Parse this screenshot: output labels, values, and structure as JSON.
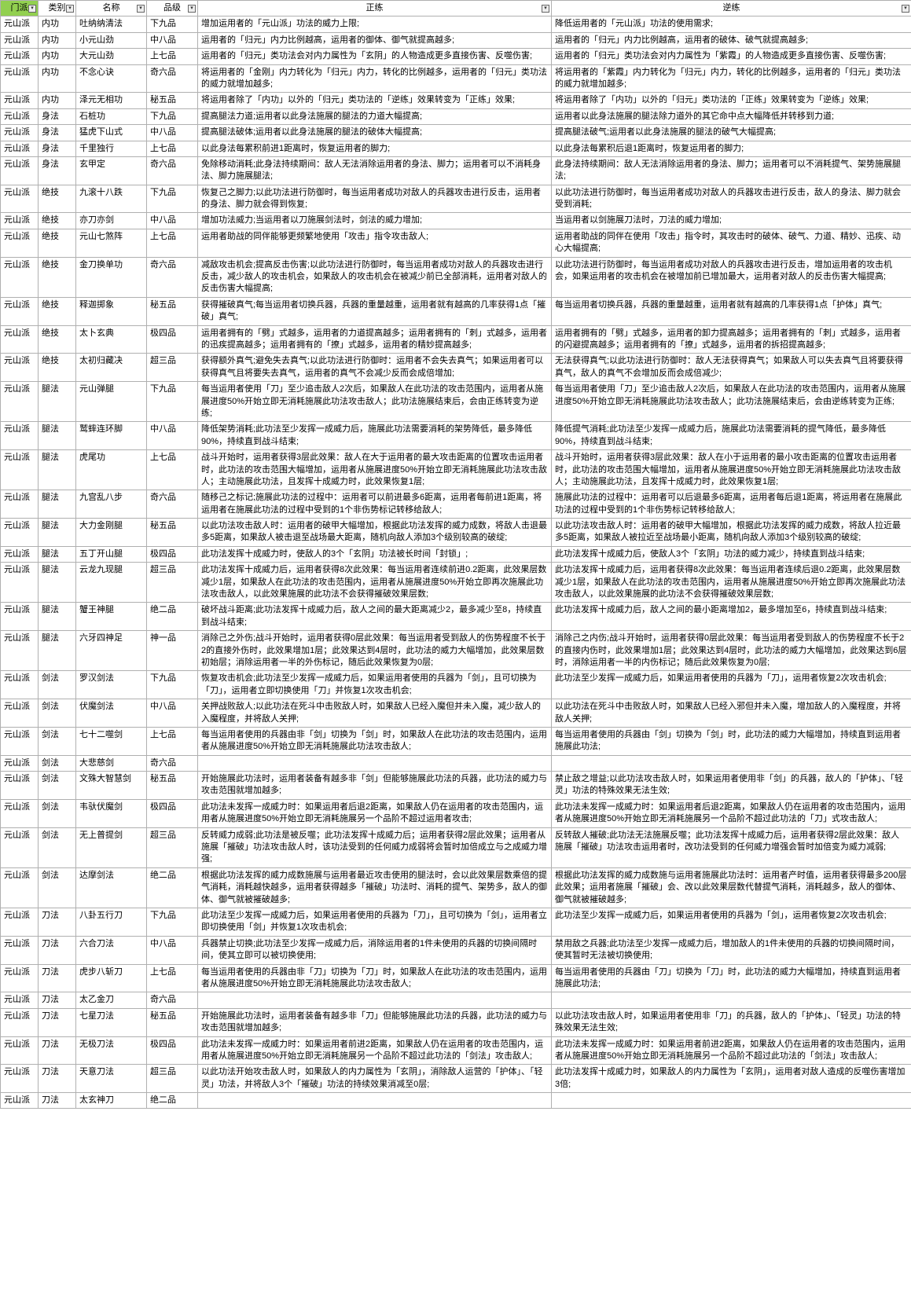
{
  "headers": [
    "门派",
    "类别",
    "名称",
    "品级",
    "正练",
    "逆练"
  ],
  "rows": [
    [
      "元山派",
      "内功",
      "吐纳纳清法",
      "下九品",
      "增加运用者的「元山派」功法的威力上限;",
      "降低运用者的「元山派」功法的使用需求;"
    ],
    [
      "元山派",
      "内功",
      "小元山劲",
      "中八品",
      "运用者的「归元」内力比例越高，运用者的御体、御气就提高越多;",
      "运用者的「归元」内力比例越高，运用者的破体、破气就提高越多;"
    ],
    [
      "元山派",
      "内功",
      "大元山劲",
      "上七品",
      "运用者的「归元」类功法会对内力属性为「玄阴」的人物造成更多直接伤害、反噬伤害;",
      "运用者的「归元」类功法会对内力属性为「紫霞」的人物造成更多直接伤害、反噬伤害;"
    ],
    [
      "元山派",
      "内功",
      "不念心诀",
      "奇六品",
      "将运用者的「金刚」内力转化为「归元」内力，转化的比例越多，运用者的「归元」类功法的威力就增加越多;",
      "将运用者的「紫霞」内力转化为「归元」内力，转化的比例越多，运用者的「归元」类功法的威力就增加越多;"
    ],
    [
      "元山派",
      "内功",
      "泽元无相功",
      "秘五品",
      "将运用者除了「内功」以外的「归元」类功法的「逆练」效果转变为「正练」效果;",
      "将运用者除了「内功」以外的「归元」类功法的「正练」效果转变为「逆练」效果;"
    ],
    [
      "元山派",
      "身法",
      "石桩功",
      "下九品",
      "提高腿法力道;运用者以此身法施展的腿法的力道大幅提高;",
      "运用者以此身法施展的腿法除力道外的其它命中点大幅降低并转移到力道;"
    ],
    [
      "元山派",
      "身法",
      "猛虎下山式",
      "中八品",
      "提高腿法破体;运用者以此身法施展的腿法的破体大幅提高;",
      "提高腿法破气;运用者以此身法施展的腿法的破气大幅提高;"
    ],
    [
      "元山派",
      "身法",
      "千里独行",
      "上七品",
      "以此身法每累积前进1距离时，恢复运用者的脚力;",
      "以此身法每累积后退1距离时，恢复运用者的脚力;"
    ],
    [
      "元山派",
      "身法",
      "玄甲定",
      "奇六品",
      "免除移动消耗;此身法持续期间：敌人无法消除运用者的身法、脚力；运用者可以不消耗身法、脚力施展腿法;",
      "此身法持续期间：敌人无法消除运用者的身法、脚力；运用者可以不消耗提气、架势施展腿法;"
    ],
    [
      "元山派",
      "绝技",
      "九滚十八跌",
      "下九品",
      "恢复己之脚力;以此功法进行防御时，每当运用者成功对敌人的兵器攻击进行反击，运用者的身法、脚力就会得到恢复;",
      "以此功法进行防御时，每当运用者成功对敌人的兵器攻击进行反击，敌人的身法、脚力就会受到消耗;"
    ],
    [
      "元山派",
      "绝技",
      "亦刀亦剑",
      "中八品",
      "增加功法威力;当运用者以刀施展剑法时，剑法的威力增加;",
      "当运用者以剑施展刀法时，刀法的威力增加;"
    ],
    [
      "元山派",
      "绝技",
      "元山七煞阵",
      "上七品",
      "运用者助战的同伴能够更频繁地使用「攻击」指令攻击敌人;",
      "运用者助战的同伴在使用「攻击」指令时，其攻击时的破体、破气、力道、精妙、迅疾、动心大幅提高;"
    ],
    [
      "元山派",
      "绝技",
      "金刀换单功",
      "奇六品",
      "减敌攻击机会;提高反击伤害;以此功法进行防御时，每当运用者成功对敌人的兵器攻击进行反击，减少敌人的攻击机会，如果敌人的攻击机会在被减少前已全部消耗，运用者对敌人的反击伤害大幅提高;",
      "以此功法进行防御时，每当运用者成功对敌人的兵器攻击进行反击，增加运用者的攻击机会，如果运用者的攻击机会在被增加前已增加最大，运用者对敌人的反击伤害大幅提高;"
    ],
    [
      "元山派",
      "绝技",
      "释迦掷象",
      "秘五品",
      "获得摧破真气;每当运用者切换兵器，兵器的重量越重，运用者就有越高的几率获得1点「摧破」真气;",
      "每当运用者切换兵器，兵器的重量越重，运用者就有越高的几率获得1点「护体」真气;"
    ],
    [
      "元山派",
      "绝技",
      "太卜玄典",
      "极四品",
      "运用者拥有的「劈」式越多，运用者的力道提高越多；运用者拥有的「刺」式越多，运用者的迅疾提高越多；运用者拥有的「撩」式越多，运用者的精妙提高越多;",
      "运用者拥有的「劈」式越多，运用者的卸力提高越多；运用者拥有的「刺」式越多，运用者的闪避提高越多；运用者拥有的「撩」式越多，运用者的拆招提高越多;"
    ],
    [
      "元山派",
      "绝技",
      "太初归藏决",
      "超三品",
      "获得额外真气;避免失去真气;以此功法进行防御时：运用者不会失去真气；如果运用者可以获得真气且将要失去真气，运用者的真气不会减少反而会成倍增加;",
      "无法获得真气;以此功法进行防御时：敌人无法获得真气；如果敌人可以失去真气且将要获得真气，敌人的真气不会增加反而会成倍减少;"
    ],
    [
      "元山派",
      "腿法",
      "元山弹腿",
      "下九品",
      "每当运用者使用「刀」至少追击敌人2次后，如果敌人在此功法的攻击范围内，运用者从施展进度50%开始立即无消耗施展此功法攻击敌人；此功法施展结束后，会由正练转变为逆练;",
      "每当运用者使用「刀」至少追击敌人2次后，如果敌人在此功法的攻击范围内，运用者从施展进度50%开始立即无消耗施展此功法攻击敌人；此功法施展结束后，会由逆练转变为正练;"
    ],
    [
      "元山派",
      "腿法",
      "鹫蟀连环脚",
      "中八品",
      "降低架势消耗;此功法至少发挥一成威力后，施展此功法需要消耗的架势降低，最多降低90%，持续直到战斗结束;",
      "降低提气消耗;此功法至少发挥一成威力后，施展此功法需要消耗的提气降低，最多降低90%，持续直到战斗结束;"
    ],
    [
      "元山派",
      "腿法",
      "虎尾功",
      "上七品",
      "战斗开始时，运用者获得3层此效果：敌人在大于运用者的最大攻击距离的位置攻击运用者时，此功法的攻击范围大幅增加，运用者从施展进度50%开始立即无消耗施展此功法攻击敌人；主动施展此功法，且发挥十成威力时，此效果恢复1层;",
      "战斗开始时，运用者获得3层此效果：敌人在小于运用者的最小攻击距离的位置攻击运用者时，此功法的攻击范围大幅增加，运用者从施展进度50%开始立即无消耗施展此功法攻击敌人；主动施展此功法，且发挥十成威力时，此效果恢复1层;"
    ],
    [
      "元山派",
      "腿法",
      "九宫乱八步",
      "奇六品",
      "随移己之标记;施展此功法的过程中：运用者可以前进最多6距离，运用者每前进1距离，将运用者在施展此功法的过程中受到的1个非伤势标记转移给敌人;",
      "施展此功法的过程中：运用者可以后退最多6距离，运用者每后退1距离，将运用者在施展此功法的过程中受到的1个非伤势标记转移给敌人;"
    ],
    [
      "元山派",
      "腿法",
      "大力金刚腿",
      "秘五品",
      "以此功法攻击敌人时：运用者的破甲大幅增加，根据此功法发挥的威力成数，将敌人击退最多5距离，如果敌人被击退至战场最大距离，随机向敌人添加3个级别较高的破绽;",
      "以此功法攻击敌人时：运用者的破甲大幅增加，根据此功法发挥的威力成数，将敌人拉近最多5距离，如果敌人被拉近至战场最小距离，随机向敌人添加3个级别较高的破绽;"
    ],
    [
      "元山派",
      "腿法",
      "五丁开山腿",
      "极四品",
      "此功法发挥十成威力时，使敌人的3个「玄阴」功法被长时间「封锁」;",
      "此功法发挥十成威力后，使敌人3个「玄阴」功法的威力减少，持续直到战斗结束;"
    ],
    [
      "元山派",
      "腿法",
      "云龙九现腿",
      "超三品",
      "此功法发挥十成威力后，运用者获得8次此效果：每当运用者连续前进0.2距离，此效果层数减少1层，如果敌人在此功法的攻击范围内，运用者从施展进度50%开始立即再次施展此功法攻击敌人，以此效果施展的此功法不会获得摧破效果层数;",
      "此功法发挥十成威力后，运用者获得8次此效果：每当运用者连续后退0.2距离，此效果层数减少1层，如果敌人在此功法的攻击范围内，运用者从施展进度50%开始立即再次施展此功法攻击敌人，以此效果施展的此功法不会获得摧破效果层数;"
    ],
    [
      "元山派",
      "腿法",
      "蟹王神腿",
      "绝二品",
      "破坏战斗距离;此功法发挥十成威力后，敌人之间的最大距离减少2，最多减少至8，持续直到战斗结束;",
      "此功法发挥十成威力后，敌人之间的最小距离增加2，最多增加至6，持续直到战斗结束;"
    ],
    [
      "元山派",
      "腿法",
      "六牙四神足",
      "神一品",
      "消除己之外伤;战斗开始时，运用者获得0层此效果：每当运用者受到敌人的伤势程度不长于2的直接外伤时，此效果增加1层；此效果达到4层时，此功法的威力大幅增加，此效果层数初始层；消除运用者一半的外伤标记，随后此效果恢复为0层;",
      "消除己之内伤;战斗开始时，运用者获得0层此效果：每当运用者受到敌人的伤势程度不长于2的直接内伤时，此效果增加1层；此效果达到4层时，此功法的威力大幅增加，此效果达到6层时，消除运用者一半的内伤标记；随后此效果恢复为0层;"
    ],
    [
      "元山派",
      "剑法",
      "罗汉剑法",
      "下九品",
      "恢复攻击机会;此功法至少发挥一成威力后，如果运用者使用的兵器为「剑」，且可切换为「刀」，运用者立即切换使用「刀」并恢复1次攻击机会;",
      "此功法至少发挥一成威力后，如果运用者使用的兵器为「刀」，运用者恢复2次攻击机会;"
    ],
    [
      "元山派",
      "剑法",
      "伏魔剑法",
      "中八品",
      "关押战败敌人;以此功法在死斗中击败敌人时，如果敌人已经入魔但并未入魔，减少敌人的入魔程度，并将敌人关押;",
      "以此功法在死斗中击败敌人时，如果敌人已经入邪但并未入魔，增加敌人的入魔程度，并将敌人关押;"
    ],
    [
      "元山派",
      "剑法",
      "七十二噬剑",
      "上七品",
      "每当运用者使用的兵器由非「剑」切换为「剑」时，如果敌人在此功法的攻击范围内，运用者从施展进度50%开始立即无消耗施展此功法攻击敌人;",
      "每当运用者使用的兵器由「剑」切换为「剑」时，此功法的威力大幅增加，持续直到运用者施展此功法;"
    ],
    [
      "元山派",
      "剑法",
      "大悲慈剑",
      "奇六品",
      "",
      ""
    ],
    [
      "元山派",
      "剑法",
      "文殊大智慧剑",
      "秘五品",
      "开始施展此功法时，运用者装备有越多非「剑」但能够施展此功法的兵器，此功法的威力与攻击范围就增加越多;",
      "禁止敌之增益;以此功法攻击敌人时，如果运用者使用非「剑」的兵器，敌人的「护体」、「轻灵」功法的特殊效果无法生效;"
    ],
    [
      "元山派",
      "剑法",
      "韦驮伏魔剑",
      "极四品",
      "此功法未发挥一成威力时：如果运用者后退2距离，如果敌人仍在运用者的攻击范围内，运用者从施展进度50%开始立即无消耗施展另一个品阶不超过运用者攻击;",
      "此功法未发挥一成威力时：如果运用者后退2距离，如果敌人仍在运用者的攻击范围内，运用者从施展进度50%开始立即无消耗施展另一个品阶不超过此功法的「刀」式攻击敌人;"
    ],
    [
      "元山派",
      "剑法",
      "无上普提剑",
      "超三品",
      "反转威力成弱;此功法是被反噬；此功法发挥十成威力后；运用者获得2层此效果；运用者从施展「摧破」功法攻击敌人时，该功法受到的任何威力成弱将会暂时加倍成立与之成威力增强;",
      "反转敌人摧破;此功法无法施展反噬；此功法发挥十成威力后，运用者获得2层此效果：敌人施展「摧破」功法攻击运用者时，改功法受到的任何威力增强会暂时加倍变为威力减弱;"
    ],
    [
      "元山派",
      "剑法",
      "达摩剑法",
      "绝二品",
      "根据此功法发挥的威力成数施展与运用者最近攻击使用的腿法时，会以此效果层数乘倍的提气消耗，消耗越快越多，运用者获得越多「摧破」功法时、消耗的提气、架势多，敌人的御体、御气就被摧破越多;",
      "根据此功法发挥的威力成数施与运用者施展此功法时：运用者产时值，运用者获得最多200层此效果；运用者施展「摧破」会、改以此效果层数代替提气消耗，消耗越多，敌人的御体、御气就被摧破越多;"
    ],
    [
      "元山派",
      "刀法",
      "八卦五行刀",
      "下九品",
      "此功法至少发挥一成威力后，如果运用者使用的兵器为「刀」，且可切换为「剑」，运用者立即切换使用「剑」并恢复1次攻击机会;",
      "此功法至少发挥一成威力后，如果运用者使用的兵器为「剑」，运用者恢复2次攻击机会;"
    ],
    [
      "元山派",
      "刀法",
      "六合刀法",
      "中八品",
      "兵器禁止切换;此功法至少发挥一成威力后，消除运用者的1件未使用的兵器的切换间隔时间，使其立即可以被切换使用;",
      "禁用敌之兵器;此功法至少发挥一成威力后，增加敌人的1件未使用的兵器的切换间隔时间，使其暂时无法被切换使用;"
    ],
    [
      "元山派",
      "刀法",
      "虎步八斩刀",
      "上七品",
      "每当运用者使用的兵器由非「刀」切换为「刀」时，如果敌人在此功法的攻击范围内，运用者从施展进度50%开始立即无消耗施展此功法攻击敌人;",
      "每当运用者使用的兵器由「刀」切换为「刀」时，此功法的威力大幅增加，持续直到运用者施展此功法;"
    ],
    [
      "元山派",
      "刀法",
      "太乙金刀",
      "奇六品",
      "",
      ""
    ],
    [
      "元山派",
      "刀法",
      "七星刀法",
      "秘五品",
      "开始施展此功法时，运用者装备有越多非「刀」但能够施展此功法的兵器，此功法的威力与攻击范围就增加越多;",
      "以此功法攻击敌人时，如果运用者使用非「刀」的兵器，敌人的「护体」、「轻灵」功法的特殊效果无法生效;"
    ],
    [
      "元山派",
      "刀法",
      "无极刀法",
      "极四品",
      "此功法未发挥一成威力时：如果运用者前进2距离，如果敌人仍在运用者的攻击范围内，运用者从施展进度50%开始立即无消耗施展另一个品阶不超过此功法的「剑法」攻击敌人;",
      "此功法未发挥一成威力时：如果运用者前进2距离，如果敌人仍在运用者的攻击范围内，运用者从施展进度50%开始立即无消耗施展另一个品阶不超过此功法的「剑法」攻击敌人;"
    ],
    [
      "元山派",
      "刀法",
      "天意刀法",
      "超三品",
      "以此功法开始攻击敌人时，如果敌人的内力属性为「玄阴」，消除敌人运营的「护体」、「轻灵」功法，并将敌人3个「摧破」功法的持续效果消减至0层;",
      "此功法发挥十成威力时，如果敌人的内力属性为「玄阴」，运用者对敌人造成的反噬伤害增加3倍;"
    ],
    [
      "元山派",
      "刀法",
      "太玄神刀",
      "绝二品",
      "",
      ""
    ]
  ]
}
